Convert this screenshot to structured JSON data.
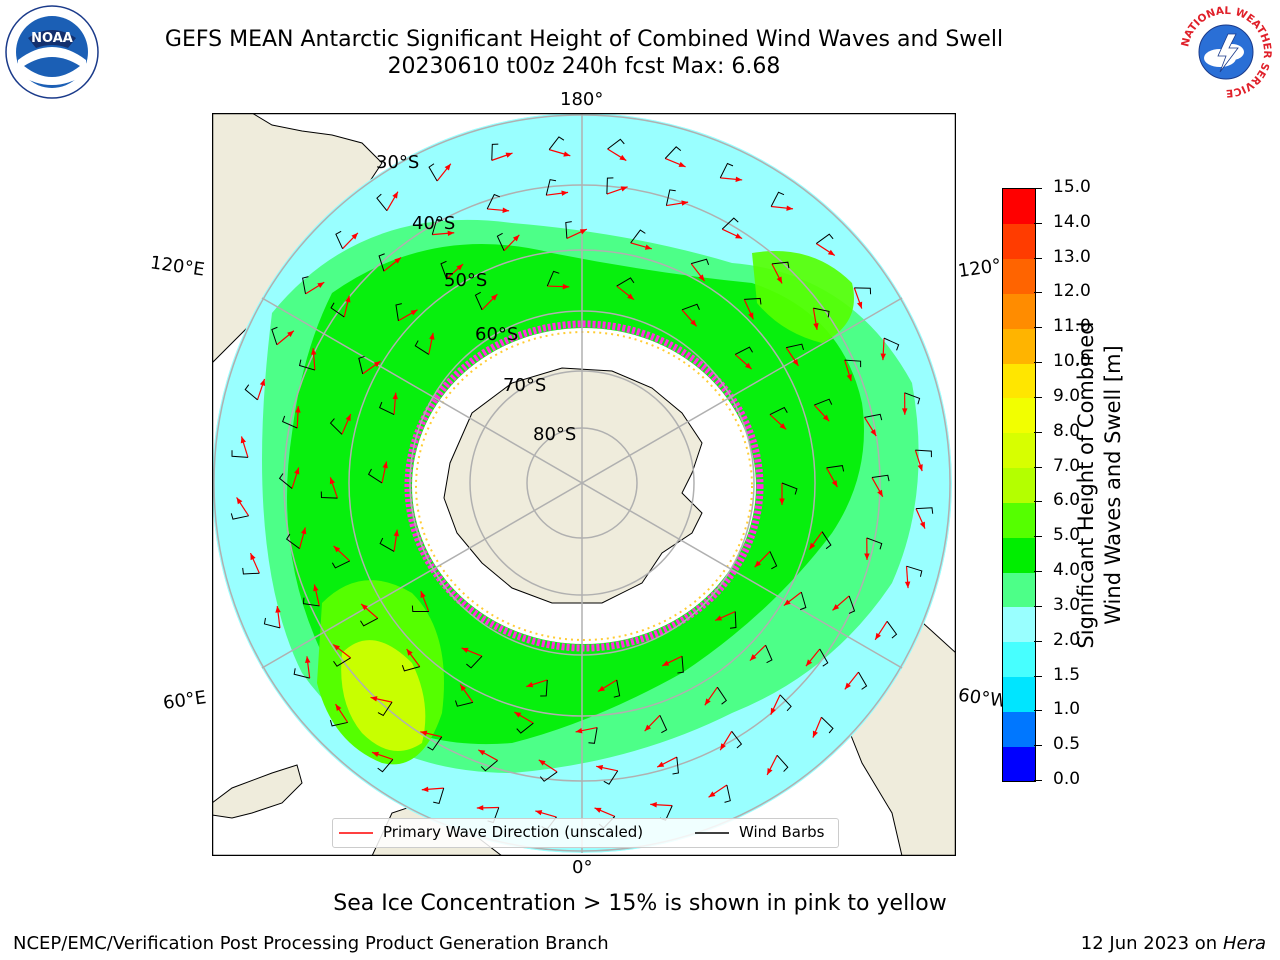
{
  "header": {
    "title_line1": "GEFS MEAN Antarctic Significant Height of Combined Wind Waves and Swell",
    "title_line2": "20230610 t00z 240h fcst   Max: 6.68"
  },
  "logos": {
    "left": {
      "text": "NOAA",
      "icon": "noaa-logo-icon"
    },
    "right": {
      "text": "NATIONAL WEATHER SERVICE",
      "icon": "nws-logo-icon"
    }
  },
  "map": {
    "projection": "south-polar-stereographic",
    "longitude_labels": {
      "top": "180°",
      "bottom": "0°",
      "upper_left": "120°E",
      "lower_left": "60°E",
      "upper_right": "120°",
      "lower_right": "60°W"
    },
    "latitude_labels": [
      "30°S",
      "40°S",
      "50°S",
      "60°S",
      "70°S",
      "80°S"
    ],
    "colors": {
      "land": "#efecdc",
      "ocean_low": "#99ffff",
      "ocean_mid": "#4dff88",
      "ocean_high": "#00ee00",
      "ocean_max": "#c8ff00",
      "ice": "#ff33dd",
      "arrow": "#ff0000",
      "grid": "#b0b0b0"
    }
  },
  "colorbar": {
    "label_line1": "Significant Height of Combined",
    "label_line2": "Wind Waves and Swell [m]",
    "ticks": [
      "0.0",
      "0.5",
      "1.0",
      "1.5",
      "2.0",
      "3.0",
      "4.0",
      "5.0",
      "6.0",
      "7.0",
      "8.0",
      "9.0",
      "10.0",
      "11.0",
      "12.0",
      "13.0",
      "14.0",
      "15.0"
    ],
    "colors": [
      "#0000ff",
      "#0077ff",
      "#00e5ff",
      "#47ffff",
      "#99ffff",
      "#4dff88",
      "#00ee00",
      "#55ff00",
      "#b4ff00",
      "#d7ff00",
      "#f2ff00",
      "#ffe600",
      "#ffb400",
      "#ff8c00",
      "#ff6400",
      "#ff3c00",
      "#ff0000"
    ]
  },
  "legend": {
    "wave_label": "Primary Wave Direction (unscaled)",
    "wave_color": "#ff0000",
    "barb_label": "Wind Barbs",
    "barb_color": "#000000"
  },
  "footer": {
    "note": "Sea Ice Concentration > 15% is shown in pink to yellow",
    "left": "NCEP/EMC/Verification Post Processing Product Generation Branch",
    "date": "12 Jun 2023 on",
    "machine": "Hera"
  }
}
